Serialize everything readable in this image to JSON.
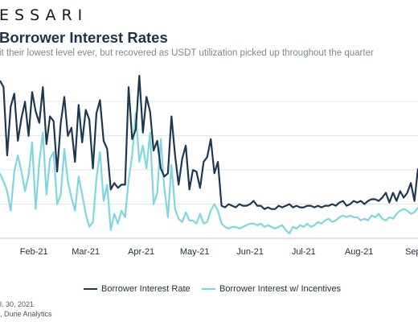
{
  "logo_text": "ESSARI",
  "chart_data": {
    "type": "line",
    "title": "Borrower Interest Rates",
    "subtitle": "it their lowest level ever, but recovered as USDT utilization picked up throughout the quarter",
    "x_tick_labels": [
      "Feb-21",
      "Mar-21",
      "Apr-21",
      "May-21",
      "Jun-21",
      "Jul-21",
      "Aug-21",
      "Sep-"
    ],
    "x_tick_days": [
      19,
      48,
      79,
      109,
      140,
      170,
      201,
      232
    ],
    "grid": true,
    "y_gridline_count": 6,
    "legend_position": "bottom",
    "series": [
      {
        "name": "Borrower Interest Rate",
        "color": "#1f3750",
        "x": [
          0,
          2,
          4,
          6,
          8,
          10,
          12,
          14,
          16,
          18,
          20,
          22,
          24,
          26,
          28,
          30,
          32,
          34,
          36,
          38,
          40,
          42,
          44,
          46,
          48,
          50,
          52,
          54,
          56,
          58,
          60,
          62,
          64,
          66,
          68,
          70,
          72,
          74,
          76,
          78,
          80,
          82,
          84,
          86,
          88,
          90,
          92,
          94,
          96,
          98,
          100,
          102,
          104,
          106,
          108,
          110,
          112,
          114,
          116,
          118,
          120,
          122,
          124,
          126,
          128,
          130,
          132,
          134,
          136,
          138,
          140,
          142,
          144,
          146,
          148,
          150,
          152,
          154,
          156,
          158,
          160,
          162,
          164,
          166,
          168,
          170,
          172,
          174,
          176,
          178,
          180,
          182,
          184,
          186,
          188,
          190,
          192,
          194,
          196,
          198,
          200,
          202,
          204,
          206,
          208,
          210,
          212,
          214,
          216,
          218,
          220,
          222,
          224,
          226,
          228,
          230,
          232,
          234
        ],
        "values": [
          9.2,
          8.8,
          4.6,
          7.6,
          8.4,
          5.5,
          6.9,
          7.9,
          5.8,
          8.5,
          7.3,
          6.6,
          8.8,
          5.3,
          7.0,
          6.7,
          3.6,
          6.6,
          8.2,
          5.8,
          6.3,
          4.2,
          7.7,
          5.4,
          7.4,
          6.8,
          3.8,
          7.2,
          8.0,
          5.5,
          5.0,
          2.5,
          2.9,
          2.6,
          2.8,
          2.8,
          8.8,
          5.6,
          6.2,
          9.5,
          6.0,
          8.2,
          7.3,
          4.9,
          5.5,
          3.8,
          3.3,
          3.5,
          7.0,
          4.6,
          2.8,
          4.4,
          5.2,
          2.5,
          3.7,
          3.6,
          2.6,
          4.2,
          4.5,
          5.6,
          3.5,
          4.2,
          1.5,
          1.4,
          1.6,
          1.5,
          1.4,
          1.6,
          1.5,
          1.5,
          1.6,
          1.8,
          1.5,
          1.5,
          1.3,
          1.4,
          1.3,
          1.3,
          1.5,
          1.4,
          1.5,
          1.6,
          1.4,
          1.5,
          1.4,
          1.4,
          1.5,
          1.5,
          1.4,
          1.5,
          1.4,
          1.5,
          1.5,
          1.6,
          1.5,
          1.7,
          1.8,
          1.5,
          1.6,
          1.8,
          1.7,
          1.8,
          1.6,
          1.8,
          1.9,
          1.9,
          1.8,
          2.0,
          2.3,
          1.7,
          2.3,
          1.8,
          2.4,
          2.0,
          2.3,
          2.9,
          1.8,
          3.8
        ]
      },
      {
        "name": "Borrower Interest w/ Incentives",
        "color": "#7fd6e0",
        "x": [
          0,
          2,
          4,
          6,
          8,
          10,
          12,
          14,
          16,
          18,
          20,
          22,
          24,
          26,
          28,
          30,
          32,
          34,
          36,
          38,
          40,
          42,
          44,
          46,
          48,
          50,
          52,
          54,
          56,
          58,
          60,
          62,
          64,
          66,
          68,
          70,
          72,
          74,
          76,
          78,
          80,
          82,
          84,
          86,
          88,
          90,
          92,
          94,
          96,
          98,
          100,
          102,
          104,
          106,
          108,
          110,
          112,
          114,
          116,
          118,
          120,
          122,
          124,
          126,
          128,
          130,
          132,
          134,
          136,
          138,
          140,
          142,
          144,
          146,
          148,
          150,
          152,
          154,
          156,
          158,
          160,
          162,
          164,
          166,
          168,
          170,
          172,
          174,
          176,
          178,
          180,
          182,
          184,
          186,
          188,
          190,
          192,
          194,
          196,
          198,
          200,
          202,
          204,
          206,
          208,
          210,
          212,
          214,
          216,
          218,
          220,
          222,
          224,
          226,
          228,
          230,
          232,
          234
        ],
        "values": [
          3.5,
          3.0,
          2.4,
          1.2,
          3.6,
          4.6,
          3.6,
          2.4,
          3.4,
          5.4,
          1.3,
          4.2,
          6.0,
          2.2,
          4.4,
          4.8,
          1.6,
          2.2,
          5.0,
          3.0,
          2.0,
          1.2,
          3.3,
          2.2,
          1.0,
          0.2,
          0.5,
          3.2,
          4.8,
          1.8,
          2.8,
          0.0,
          1.0,
          0.4,
          1.2,
          0.8,
          3.1,
          4.6,
          7.2,
          4.2,
          5.2,
          3.8,
          6.0,
          1.6,
          2.3,
          5.6,
          2.6,
          0.8,
          4.0,
          1.3,
          0.7,
          0.5,
          1.1,
          0.6,
          0.6,
          0.4,
          1.0,
          0.4,
          0.5,
          1.2,
          1.6,
          1.2,
          0.4,
          0.2,
          0.1,
          0.2,
          0.2,
          0.1,
          0.2,
          0.3,
          0.4,
          0.4,
          0.3,
          0.4,
          0.2,
          0.3,
          0.2,
          0.1,
          0.2,
          0.3,
          0.0,
          -0.2,
          0.2,
          0.1,
          0.3,
          0.2,
          0.4,
          0.2,
          0.3,
          0.5,
          0.4,
          0.6,
          0.7,
          0.5,
          0.6,
          0.8,
          0.9,
          0.8,
          0.9,
          0.8,
          0.8,
          0.6,
          0.7,
          0.6,
          0.9,
          0.8,
          1.0,
          0.7,
          0.6,
          0.8,
          0.7,
          1.0,
          1.2,
          1.3,
          1.2,
          1.0,
          1.1,
          1.4
        ]
      }
    ]
  },
  "footnotes": [
    "l. 30, 2021",
    ", Dune Analytics"
  ]
}
